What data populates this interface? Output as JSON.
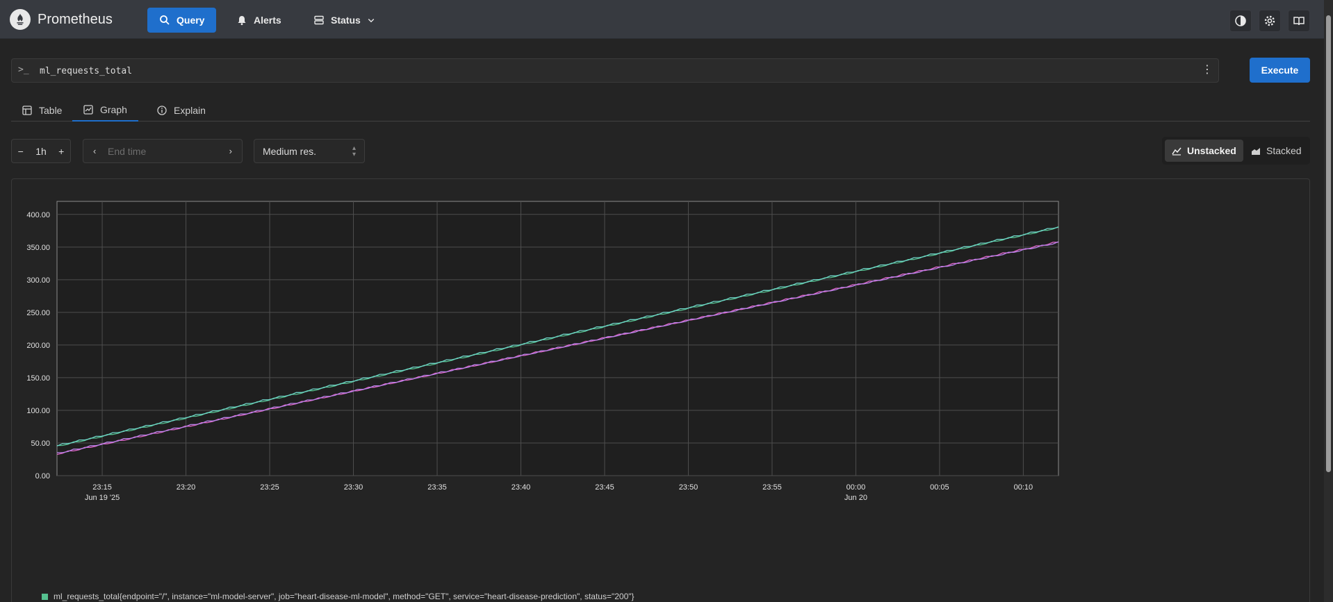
{
  "app": {
    "title": "Prometheus"
  },
  "nav": {
    "query": "Query",
    "alerts": "Alerts",
    "status": "Status"
  },
  "query": {
    "prompt": ">_",
    "expression": "ml_requests_total",
    "execute": "Execute"
  },
  "tabs": [
    {
      "label": "Table"
    },
    {
      "label": "Graph"
    },
    {
      "label": "Explain"
    }
  ],
  "active_tab": "Graph",
  "controls": {
    "range_minus": "−",
    "range": "1h",
    "range_plus": "+",
    "end_time_placeholder": "End time",
    "resolution": "Medium res.",
    "unstacked": "Unstacked",
    "stacked": "Stacked",
    "stack_mode": "Unstacked"
  },
  "colors": {
    "accent": "#1f6fcc",
    "series_green": "#55c08f",
    "series_pink": "#e066c9"
  },
  "chart_data": {
    "type": "line",
    "ylim": [
      0,
      420
    ],
    "y_ticks": [
      "0.00",
      "50.00",
      "100.00",
      "150.00",
      "200.00",
      "250.00",
      "300.00",
      "350.00",
      "400.00"
    ],
    "y_tick_values": [
      0,
      50,
      100,
      150,
      200,
      250,
      300,
      350,
      400
    ],
    "x_range_minutes": [
      -2.7,
      57.1
    ],
    "x_ticks": [
      {
        "m": 0,
        "label": "23:15",
        "sub": "Jun 19 '25"
      },
      {
        "m": 5,
        "label": "23:20",
        "sub": ""
      },
      {
        "m": 10,
        "label": "23:25",
        "sub": ""
      },
      {
        "m": 15,
        "label": "23:30",
        "sub": ""
      },
      {
        "m": 20,
        "label": "23:35",
        "sub": ""
      },
      {
        "m": 25,
        "label": "23:40",
        "sub": ""
      },
      {
        "m": 30,
        "label": "23:45",
        "sub": ""
      },
      {
        "m": 35,
        "label": "23:50",
        "sub": ""
      },
      {
        "m": 40,
        "label": "23:55",
        "sub": ""
      },
      {
        "m": 45,
        "label": "00:00",
        "sub": "Jun 20"
      },
      {
        "m": 50,
        "label": "00:05",
        "sub": ""
      },
      {
        "m": 55,
        "label": "00:10",
        "sub": ""
      }
    ],
    "series": [
      {
        "legend": "ml_requests_total{endpoint=\"/\", instance=\"ml-model-server\", job=\"heart-disease-ml-model\", method=\"GET\", service=\"heart-disease-prediction\", status=\"200\"}",
        "color": "#55c08f",
        "start": 45,
        "end": 380
      },
      {
        "color": "#6fd4c8",
        "start": 46,
        "end": 381
      },
      {
        "color": "#e066c9",
        "start": 33,
        "end": 358
      },
      {
        "color": "#b983ea",
        "start": 34,
        "end": 357
      }
    ]
  }
}
